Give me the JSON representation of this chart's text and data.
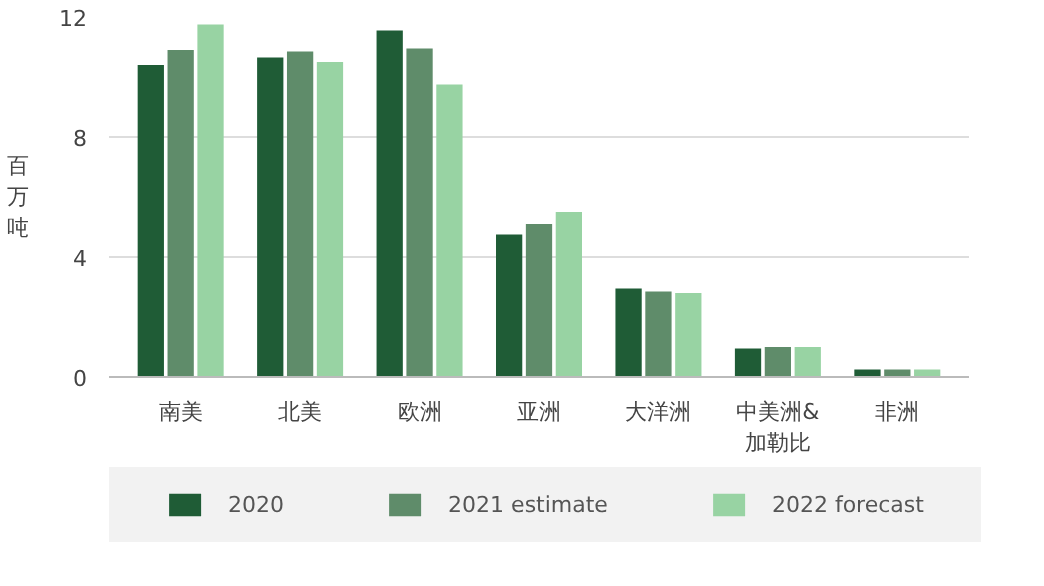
{
  "chart_data": {
    "type": "bar",
    "ylabel": "百万吨",
    "categories": [
      "南美",
      "北美",
      "欧洲",
      "亚洲",
      "大洋洲",
      "中美洲&加勒比",
      "非洲"
    ],
    "series": [
      {
        "name": "2020",
        "color": "#1f5c36",
        "values": [
          10.4,
          10.65,
          11.55,
          4.75,
          2.95,
          0.95,
          0.25
        ]
      },
      {
        "name": "2021 estimate",
        "color": "#5f8c6a",
        "values": [
          10.9,
          10.85,
          10.95,
          5.1,
          2.85,
          1.0,
          0.25
        ]
      },
      {
        "name": "2022 forecast",
        "color": "#98d3a3",
        "values": [
          11.75,
          10.5,
          9.75,
          5.5,
          2.8,
          1.0,
          0.25
        ]
      }
    ],
    "ylim": [
      0,
      12
    ],
    "yticks": [
      0,
      4,
      8,
      12
    ],
    "grid": "y",
    "legend": "bottom"
  }
}
